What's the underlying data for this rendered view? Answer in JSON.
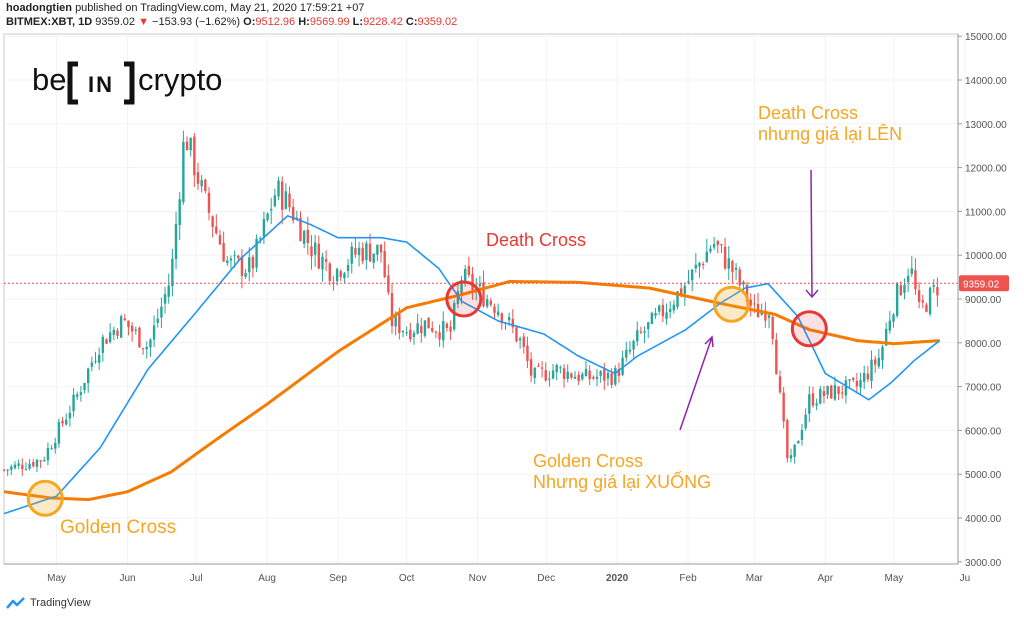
{
  "header": {
    "author": "hoadongtien",
    "published": "published on TradingView.com, May 21, 2020 17:59:21 +07",
    "symbol": "BITMEX:XBT, 1D",
    "last": "9359.02",
    "change_arrow": "▼",
    "change": "−153.93 (−1.62%)",
    "o_label": "O:",
    "o": "9512.96",
    "h_label": "H:",
    "h": "9569.99",
    "l_label": "L:",
    "l": "9228.42",
    "c_label": "C:",
    "c": "9359.02"
  },
  "logo": {
    "left": "be",
    "middle": "IN",
    "right": "crypto"
  },
  "footer": {
    "brand": "TradingView"
  },
  "colors": {
    "bull": "#26a69a",
    "bear": "#ef5350",
    "ma50": "#2196f3",
    "ma200": "#f57c00",
    "annotation_orange": "#f5a623",
    "annotation_red": "#e53935",
    "arrow_purple": "#8e24aa",
    "last_price": "#ef5350"
  },
  "annotations": {
    "golden_cross_1": "Golden Cross",
    "death_cross_1": "Death Cross",
    "golden_cross_2_line1": "Golden Cross",
    "golden_cross_2_line2": "Nhưng giá lại XUỐNG",
    "death_cross_2_line1": "Death Cross",
    "death_cross_2_line2": "nhưng giá lại LÊN"
  },
  "chart_data": {
    "type": "line",
    "price_scale": {
      "ticks": [
        3000,
        4000,
        5000,
        6000,
        7000,
        8000,
        9000,
        10000,
        11000,
        12000,
        13000,
        14000,
        15000
      ],
      "tick_labels": [
        "3000.00",
        "4000.00",
        "5000.00",
        "6000.00",
        "7000.00",
        "8000.00",
        "9000.00",
        "10000.00",
        "11000.00",
        "12000.00",
        "13000.00",
        "14000.00",
        "15000.00"
      ],
      "ylim": [
        2950,
        15050
      ],
      "last_price_label": "9359.02",
      "last_price": 9359.02
    },
    "time_axis": {
      "labels": [
        "May",
        "Jun",
        "Jul",
        "Aug",
        "Sep",
        "Oct",
        "Nov",
        "Dec",
        "2020",
        "Feb",
        "Mar",
        "Apr",
        "May",
        "Ju"
      ],
      "dates": [
        "2019-05-01",
        "2019-06-01",
        "2019-07-01",
        "2019-08-01",
        "2019-09-01",
        "2019-10-01",
        "2019-11-01",
        "2019-12-01",
        "2020-01-01",
        "2020-02-01",
        "2020-03-01",
        "2020-04-01",
        "2020-05-01",
        "2020-06-01"
      ],
      "xlim": [
        "2019-04-08",
        "2020-05-29"
      ]
    },
    "series": [
      {
        "name": "",
        "kind": "price",
        "x": [
          "2019-04-08",
          "2019-04-25",
          "2019-05-10",
          "2019-05-20",
          "2019-05-30",
          "2019-06-10",
          "2019-06-20",
          "2019-06-26",
          "2019-07-05",
          "2019-07-15",
          "2019-07-25",
          "2019-08-05",
          "2019-08-10",
          "2019-08-20",
          "2019-08-30",
          "2019-09-10",
          "2019-09-20",
          "2019-09-24",
          "2019-10-01",
          "2019-10-10",
          "2019-10-20",
          "2019-10-25",
          "2019-11-01",
          "2019-11-10",
          "2019-11-20",
          "2019-11-25",
          "2019-12-05",
          "2019-12-18",
          "2019-12-31",
          "2020-01-10",
          "2020-01-20",
          "2020-02-01",
          "2020-02-12",
          "2020-02-20",
          "2020-03-01",
          "2020-03-08",
          "2020-03-12",
          "2020-03-16",
          "2020-03-25",
          "2020-04-05",
          "2020-04-15",
          "2020-04-25",
          "2020-04-30",
          "2020-05-08",
          "2020-05-12",
          "2020-05-21"
        ],
        "y": [
          5100,
          5350,
          6800,
          8000,
          8500,
          7900,
          9500,
          12800,
          11200,
          9800,
          9700,
          11500,
          11200,
          10200,
          9600,
          10100,
          10100,
          8500,
          8300,
          8450,
          8200,
          9500,
          9200,
          8800,
          8000,
          7200,
          7400,
          7200,
          7250,
          8100,
          8650,
          9400,
          10300,
          9700,
          8700,
          8800,
          6800,
          5100,
          6700,
          6900,
          7000,
          7700,
          8800,
          9800,
          8700,
          9359
        ]
      },
      {
        "name": "",
        "kind": "ma50",
        "x": [
          "2019-04-08",
          "2019-05-01",
          "2019-05-20",
          "2019-06-10",
          "2019-07-01",
          "2019-07-20",
          "2019-08-10",
          "2019-08-20",
          "2019-09-01",
          "2019-09-20",
          "2019-10-01",
          "2019-10-15",
          "2019-10-25",
          "2019-11-10",
          "2019-11-30",
          "2019-12-15",
          "2019-12-31",
          "2020-01-10",
          "2020-01-31",
          "2020-02-15",
          "2020-02-26",
          "2020-03-07",
          "2020-03-20",
          "2020-04-01",
          "2020-04-20",
          "2020-04-30",
          "2020-05-10",
          "2020-05-21"
        ],
        "y": [
          4100,
          4500,
          5600,
          7400,
          8700,
          9900,
          10900,
          10700,
          10400,
          10400,
          10300,
          9700,
          8950,
          8500,
          8200,
          7700,
          7300,
          7700,
          8300,
          8900,
          9250,
          9350,
          8600,
          7300,
          6700,
          7100,
          7600,
          8050
        ]
      },
      {
        "name": "",
        "kind": "ma200",
        "x": [
          "2019-04-08",
          "2019-04-28",
          "2019-05-15",
          "2019-06-01",
          "2019-06-20",
          "2019-07-10",
          "2019-08-01",
          "2019-09-01",
          "2019-10-01",
          "2019-10-25",
          "2019-11-15",
          "2019-12-15",
          "2020-01-15",
          "2020-02-15",
          "2020-03-10",
          "2020-03-25",
          "2020-04-15",
          "2020-05-01",
          "2020-05-21"
        ],
        "y": [
          4600,
          4460,
          4420,
          4600,
          5050,
          5800,
          6600,
          7800,
          8800,
          9100,
          9400,
          9380,
          9250,
          8900,
          8650,
          8300,
          8050,
          7980,
          8050
        ]
      }
    ],
    "crosses": [
      {
        "type": "golden",
        "date": "2019-04-26",
        "price": 4450
      },
      {
        "type": "death",
        "date": "2019-10-26",
        "price": 9000
      },
      {
        "type": "golden",
        "date": "2020-02-20",
        "price": 8880
      },
      {
        "type": "death",
        "date": "2020-03-25",
        "price": 8320
      }
    ]
  }
}
